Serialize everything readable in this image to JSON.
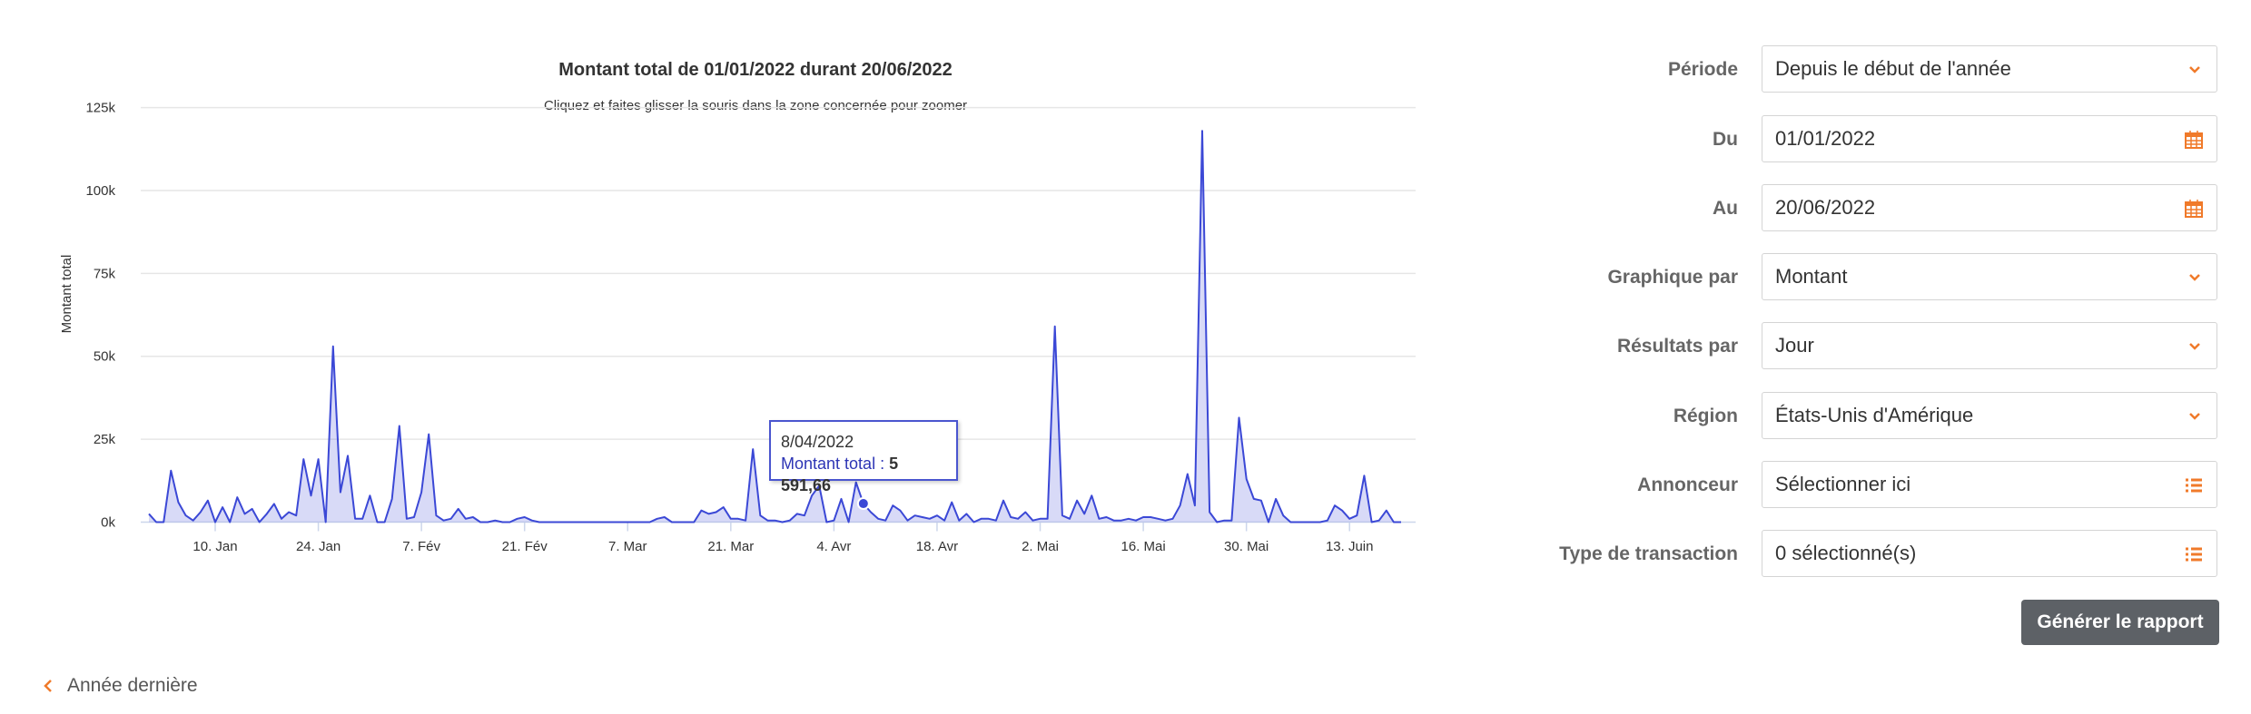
{
  "chart_data": {
    "type": "area",
    "title": "Montant total de 01/01/2022 durant 20/06/2022",
    "subtitle": "Cliquez et faites glisser la souris dans la zone concernée pour zoomer",
    "y_label": "Montant total",
    "color": "#3b48d6",
    "grid": true,
    "ylim": [
      0,
      125000
    ],
    "yticks": [
      {
        "value": 0,
        "label": "0k"
      },
      {
        "value": 25000,
        "label": "25k"
      },
      {
        "value": 50000,
        "label": "50k"
      },
      {
        "value": 75000,
        "label": "75k"
      },
      {
        "value": 100000,
        "label": "100k"
      },
      {
        "value": 125000,
        "label": "125k"
      }
    ],
    "xlim": [
      "2022-01-01",
      "2022-06-20"
    ],
    "xticks": [
      {
        "value": "2022-01-10",
        "label": "10. Jan"
      },
      {
        "value": "2022-01-24",
        "label": "24. Jan"
      },
      {
        "value": "2022-02-07",
        "label": "7. Fév"
      },
      {
        "value": "2022-02-21",
        "label": "21. Fév"
      },
      {
        "value": "2022-03-07",
        "label": "7. Mar"
      },
      {
        "value": "2022-03-21",
        "label": "21. Mar"
      },
      {
        "value": "2022-04-04",
        "label": "4. Avr"
      },
      {
        "value": "2022-04-18",
        "label": "18. Avr"
      },
      {
        "value": "2022-05-02",
        "label": "2. Mai"
      },
      {
        "value": "2022-05-16",
        "label": "16. Mai"
      },
      {
        "value": "2022-05-30",
        "label": "30. Mai"
      },
      {
        "value": "2022-06-13",
        "label": "13. Juin"
      }
    ],
    "x": [
      "2022-01-01",
      "2022-01-02",
      "2022-01-03",
      "2022-01-04",
      "2022-01-05",
      "2022-01-06",
      "2022-01-07",
      "2022-01-08",
      "2022-01-09",
      "2022-01-10",
      "2022-01-11",
      "2022-01-12",
      "2022-01-13",
      "2022-01-14",
      "2022-01-15",
      "2022-01-16",
      "2022-01-17",
      "2022-01-18",
      "2022-01-19",
      "2022-01-20",
      "2022-01-21",
      "2022-01-22",
      "2022-01-23",
      "2022-01-24",
      "2022-01-25",
      "2022-01-26",
      "2022-01-27",
      "2022-01-28",
      "2022-01-29",
      "2022-01-30",
      "2022-01-31",
      "2022-02-01",
      "2022-02-02",
      "2022-02-03",
      "2022-02-04",
      "2022-02-05",
      "2022-02-06",
      "2022-02-07",
      "2022-02-08",
      "2022-02-09",
      "2022-02-10",
      "2022-02-11",
      "2022-02-12",
      "2022-02-13",
      "2022-02-14",
      "2022-02-15",
      "2022-02-16",
      "2022-02-17",
      "2022-02-18",
      "2022-02-19",
      "2022-02-20",
      "2022-02-21",
      "2022-02-22",
      "2022-02-23",
      "2022-02-24",
      "2022-02-25",
      "2022-02-26",
      "2022-02-27",
      "2022-02-28",
      "2022-03-01",
      "2022-03-02",
      "2022-03-03",
      "2022-03-04",
      "2022-03-05",
      "2022-03-06",
      "2022-03-07",
      "2022-03-08",
      "2022-03-09",
      "2022-03-10",
      "2022-03-11",
      "2022-03-12",
      "2022-03-13",
      "2022-03-14",
      "2022-03-15",
      "2022-03-16",
      "2022-03-17",
      "2022-03-18",
      "2022-03-19",
      "2022-03-20",
      "2022-03-21",
      "2022-03-22",
      "2022-03-23",
      "2022-03-24",
      "2022-03-25",
      "2022-03-26",
      "2022-03-27",
      "2022-03-28",
      "2022-03-29",
      "2022-03-30",
      "2022-03-31",
      "2022-04-01",
      "2022-04-02",
      "2022-04-03",
      "2022-04-04",
      "2022-04-05",
      "2022-04-06",
      "2022-04-07",
      "2022-04-08",
      "2022-04-09",
      "2022-04-10",
      "2022-04-11",
      "2022-04-12",
      "2022-04-13",
      "2022-04-14",
      "2022-04-15",
      "2022-04-16",
      "2022-04-17",
      "2022-04-18",
      "2022-04-19",
      "2022-04-20",
      "2022-04-21",
      "2022-04-22",
      "2022-04-23",
      "2022-04-24",
      "2022-04-25",
      "2022-04-26",
      "2022-04-27",
      "2022-04-28",
      "2022-04-29",
      "2022-04-30",
      "2022-05-01",
      "2022-05-02",
      "2022-05-03",
      "2022-05-04",
      "2022-05-05",
      "2022-05-06",
      "2022-05-07",
      "2022-05-08",
      "2022-05-09",
      "2022-05-10",
      "2022-05-11",
      "2022-05-12",
      "2022-05-13",
      "2022-05-14",
      "2022-05-15",
      "2022-05-16",
      "2022-05-17",
      "2022-05-18",
      "2022-05-19",
      "2022-05-20",
      "2022-05-21",
      "2022-05-22",
      "2022-05-23",
      "2022-05-24",
      "2022-05-25",
      "2022-05-26",
      "2022-05-27",
      "2022-05-28",
      "2022-05-29",
      "2022-05-30",
      "2022-05-31",
      "2022-06-01",
      "2022-06-02",
      "2022-06-03",
      "2022-06-04",
      "2022-06-05",
      "2022-06-06",
      "2022-06-07",
      "2022-06-08",
      "2022-06-09",
      "2022-06-10",
      "2022-06-11",
      "2022-06-12",
      "2022-06-13",
      "2022-06-14",
      "2022-06-15",
      "2022-06-16",
      "2022-06-17",
      "2022-06-18",
      "2022-06-19",
      "2022-06-20"
    ],
    "values": [
      2500,
      0,
      0,
      15500,
      6000,
      2000,
      500,
      3000,
      6500,
      0,
      4500,
      0,
      7500,
      2500,
      4000,
      0,
      2500,
      5500,
      1000,
      3000,
      2000,
      19000,
      8000,
      19000,
      0,
      53000,
      9000,
      20000,
      1000,
      1000,
      8000,
      0,
      0,
      7000,
      29000,
      1000,
      1500,
      9000,
      26500,
      2000,
      500,
      1000,
      4000,
      1000,
      1500,
      0,
      0,
      500,
      0,
      0,
      1000,
      1500,
      500,
      0,
      0,
      0,
      0,
      0,
      0,
      0,
      0,
      0,
      0,
      0,
      0,
      0,
      0,
      0,
      0,
      1000,
      1500,
      0,
      0,
      0,
      0,
      3500,
      2500,
      3000,
      4500,
      1000,
      1000,
      500,
      22000,
      2000,
      500,
      500,
      0,
      500,
      2500,
      2000,
      8000,
      11000,
      0,
      500,
      7000,
      0,
      12000,
      5591.66,
      3000,
      1000,
      500,
      5000,
      3500,
      500,
      2000,
      1500,
      1000,
      2000,
      500,
      6000,
      500,
      2500,
      0,
      1000,
      1000,
      500,
      6500,
      1500,
      1000,
      3000,
      500,
      1000,
      1000,
      59000,
      2000,
      1000,
      6500,
      2500,
      8000,
      1000,
      1500,
      500,
      500,
      1000,
      500,
      1500,
      1500,
      1000,
      500,
      1000,
      5000,
      14500,
      5000,
      118000,
      3000,
      0,
      500,
      500,
      31500,
      13000,
      7000,
      6500,
      0,
      7000,
      2000,
      0,
      0,
      0,
      0,
      0,
      500,
      5000,
      3500,
      1000,
      2000,
      14000,
      0,
      500,
      3500,
      0,
      0
    ],
    "tooltip": {
      "index": 97,
      "date": "8/04/2022",
      "name": "Montant total :",
      "value_label": "5 591,66"
    }
  },
  "form": {
    "fields": [
      {
        "label": "Période",
        "value": "Depuis le début de l'année"
      },
      {
        "label": "Du",
        "value": "01/01/2022"
      },
      {
        "label": "Au",
        "value": "20/06/2022"
      },
      {
        "label": "Graphique par",
        "value": "Montant"
      },
      {
        "label": "Résultats par",
        "value": "Jour"
      },
      {
        "label": "Région",
        "value": "États-Unis d'Amérique"
      },
      {
        "label": "Annonceur",
        "value": "Sélectionner ici"
      },
      {
        "label": "Type de transaction",
        "value": "0 sélectionné(s)"
      }
    ],
    "submit": "Générer le rapport"
  },
  "footer": {
    "previous": "Année dernière"
  }
}
